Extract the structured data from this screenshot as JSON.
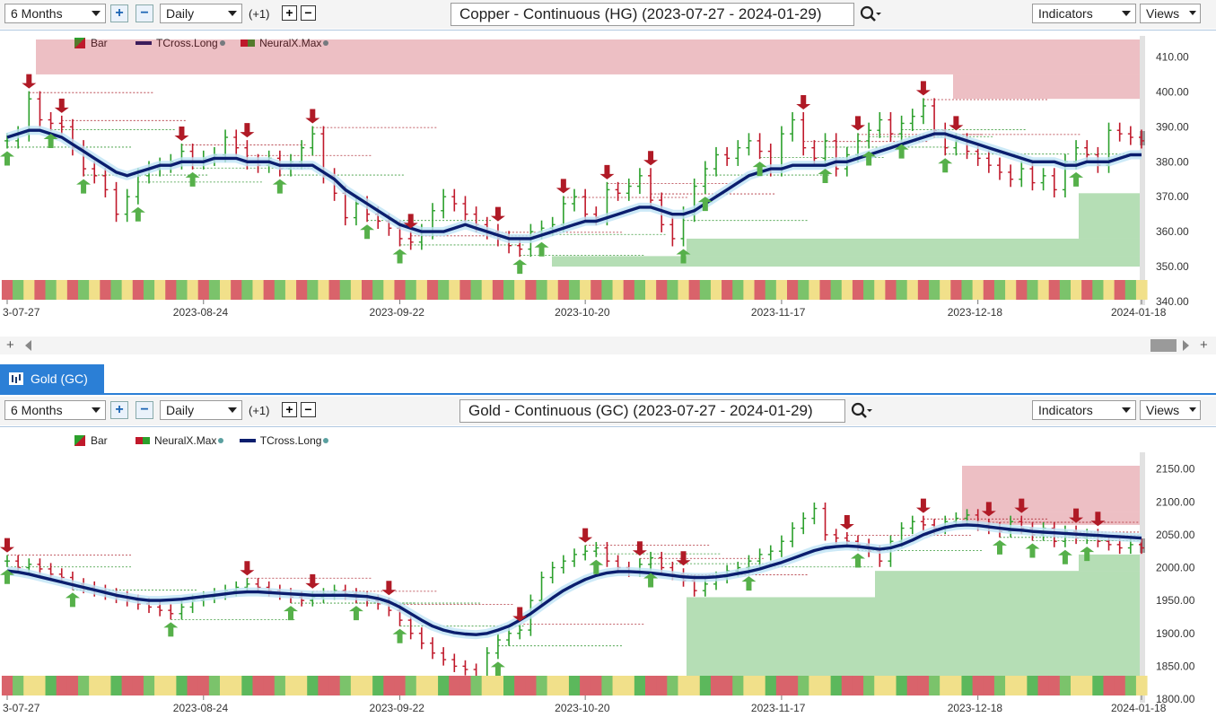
{
  "copper": {
    "toolbar": {
      "period": "6 Months",
      "interval": "Daily",
      "offset": "(+1)",
      "title": "Copper - Continuous (HG) (2023-07-27 - 2024-01-29)",
      "indicators": "Indicators",
      "views": "Views"
    },
    "legend": {
      "bar": "Bar",
      "tcross": "TCross.Long",
      "neuralx": "NeuralX.Max"
    },
    "chart_data": {
      "type": "bar",
      "ylim": [
        340,
        415
      ],
      "yticks": [
        "410.00",
        "400.00",
        "390.00",
        "380.00",
        "370.00",
        "360.00",
        "350.00",
        "340.00"
      ],
      "xticks": [
        "3-07-27",
        "2023-08-24",
        "2023-09-22",
        "2023-10-20",
        "2023-11-17",
        "2023-12-18",
        "2024-01-18"
      ],
      "close": [
        386,
        388,
        398,
        392,
        391,
        390,
        384,
        378,
        376,
        372,
        365,
        370,
        376,
        378,
        379,
        380,
        383,
        380,
        381,
        382,
        387,
        384,
        380,
        379,
        381,
        378,
        380,
        384,
        388,
        376,
        371,
        364,
        368,
        365,
        363,
        361,
        358,
        357,
        360,
        366,
        370,
        368,
        365,
        362,
        360,
        358,
        356,
        355,
        360,
        361,
        362,
        368,
        370,
        365,
        364,
        372,
        371,
        373,
        376,
        369,
        362,
        358,
        365,
        373,
        378,
        382,
        381,
        384,
        386,
        383,
        378,
        388,
        392,
        384,
        381,
        386,
        378,
        382,
        386,
        389,
        392,
        388,
        391,
        393,
        396,
        389,
        384,
        386,
        383,
        381,
        379,
        377,
        375,
        378,
        374,
        376,
        372,
        380,
        384,
        382,
        379,
        389,
        388,
        387,
        386
      ],
      "tcross": [
        387,
        388,
        389,
        389,
        388,
        387,
        385,
        383,
        381,
        379,
        377,
        376,
        377,
        378,
        379,
        379,
        380,
        380,
        380,
        381,
        381,
        381,
        380,
        380,
        380,
        379,
        379,
        379,
        379,
        377,
        375,
        372,
        370,
        368,
        366,
        364,
        362,
        361,
        360,
        360,
        360,
        361,
        362,
        361,
        360,
        359,
        358,
        358,
        358,
        359,
        360,
        361,
        362,
        363,
        363,
        364,
        365,
        366,
        367,
        367,
        366,
        365,
        365,
        366,
        368,
        370,
        372,
        374,
        376,
        377,
        378,
        378,
        379,
        379,
        379,
        379,
        380,
        380,
        381,
        382,
        383,
        384,
        385,
        386,
        387,
        388,
        388,
        387,
        386,
        385,
        384,
        383,
        382,
        381,
        380,
        380,
        380,
        379,
        379,
        380,
        380,
        380,
        381,
        382,
        382
      ],
      "sell_arrows": [
        2,
        5,
        16,
        22,
        28,
        37,
        45,
        51,
        55,
        59,
        73,
        78,
        84,
        87
      ],
      "buy_arrows": [
        0,
        4,
        7,
        12,
        17,
        25,
        33,
        36,
        47,
        49,
        62,
        64,
        69,
        75,
        79,
        82,
        86,
        98
      ],
      "regime_colors": [
        "#d9636b",
        "#7bc36b",
        "#f1e08a",
        "#5cb85c",
        "#9a8f4e"
      ],
      "zones": [
        {
          "from": 405,
          "to": 415,
          "color": "#c0192b"
        },
        {
          "from": 398,
          "to": 405,
          "color": "#c0192b"
        },
        {
          "from": 350,
          "to": 353,
          "color": "#2ca02c"
        },
        {
          "from": 353,
          "to": 358,
          "color": "#2ca02c"
        },
        {
          "from": 358,
          "to": 371,
          "color": "#2ca02c"
        }
      ]
    }
  },
  "gold": {
    "tab": "Gold (GC)",
    "toolbar": {
      "period": "6 Months",
      "interval": "Daily",
      "offset": "(+1)",
      "title": "Gold - Continuous (GC) (2023-07-27 - 2024-01-29)",
      "indicators": "Indicators",
      "views": "Views"
    },
    "legend": {
      "bar": "Bar",
      "neuralx": "NeuralX.Max",
      "tcross": "TCross.Long"
    },
    "chart_data": {
      "type": "bar",
      "ylim": [
        1800,
        2170
      ],
      "yticks": [
        "2150.00",
        "2100.00",
        "2050.00",
        "2000.00",
        "1950.00",
        "1900.00",
        "1850.00",
        "1800.00"
      ],
      "xticks": [
        "3-07-27",
        "2023-08-24",
        "2023-09-22",
        "2023-10-20",
        "2023-11-17",
        "2023-12-18",
        "2024-01-18"
      ],
      "close": [
        2010,
        2000,
        2005,
        1998,
        1990,
        1985,
        1975,
        1970,
        1965,
        1960,
        1955,
        1950,
        1945,
        1940,
        1935,
        1930,
        1940,
        1950,
        1955,
        1960,
        1965,
        1970,
        1975,
        1970,
        1965,
        1960,
        1955,
        1950,
        1955,
        1960,
        1965,
        1960,
        1955,
        1950,
        1945,
        1935,
        1920,
        1900,
        1885,
        1870,
        1860,
        1850,
        1845,
        1830,
        1870,
        1890,
        1900,
        1905,
        1950,
        1985,
        2000,
        2010,
        2020,
        2025,
        2030,
        2010,
        2000,
        1995,
        2005,
        2015,
        2000,
        1990,
        1980,
        1965,
        1975,
        1985,
        1995,
        2000,
        2010,
        2020,
        2025,
        2040,
        2060,
        2075,
        2090,
        2050,
        2045,
        2040,
        2035,
        2025,
        2010,
        2040,
        2060,
        2070,
        2065,
        2060,
        2070,
        2075,
        2080,
        2065,
        2060,
        2055,
        2070,
        2060,
        2050,
        2060,
        2040,
        2055,
        2045,
        2050,
        2040,
        2035,
        2030,
        2035,
        2030
      ],
      "tcross": [
        1995,
        1993,
        1990,
        1986,
        1982,
        1978,
        1974,
        1970,
        1966,
        1962,
        1958,
        1955,
        1952,
        1950,
        1950,
        1951,
        1952,
        1954,
        1956,
        1958,
        1960,
        1962,
        1963,
        1963,
        1962,
        1961,
        1960,
        1959,
        1958,
        1958,
        1958,
        1958,
        1957,
        1956,
        1953,
        1948,
        1940,
        1930,
        1920,
        1911,
        1905,
        1901,
        1899,
        1898,
        1900,
        1905,
        1911,
        1920,
        1930,
        1942,
        1954,
        1965,
        1974,
        1982,
        1988,
        1992,
        1994,
        1994,
        1993,
        1992,
        1990,
        1988,
        1986,
        1985,
        1985,
        1986,
        1988,
        1991,
        1994,
        1998,
        2003,
        2008,
        2014,
        2020,
        2026,
        2030,
        2032,
        2033,
        2032,
        2030,
        2028,
        2030,
        2035,
        2042,
        2050,
        2056,
        2061,
        2064,
        2065,
        2064,
        2062,
        2060,
        2058,
        2057,
        2055,
        2054,
        2053,
        2052,
        2051,
        2050,
        2049,
        2048,
        2047,
        2046,
        2045
      ],
      "sell_arrows": [
        0,
        22,
        28,
        35,
        47,
        53,
        58,
        62,
        77,
        84,
        90,
        93,
        98,
        100
      ],
      "buy_arrows": [
        0,
        6,
        15,
        26,
        32,
        36,
        45,
        54,
        59,
        68,
        78,
        91,
        94,
        97,
        99
      ],
      "regime_colors": [
        "#d9636b",
        "#7bc36b",
        "#f1e08a",
        "#5cb85c"
      ],
      "zones": [
        {
          "from": 2110,
          "to": 2155,
          "color": "#c0192b"
        },
        {
          "from": 2085,
          "to": 2110,
          "color": "#c0192b"
        },
        {
          "from": 2065,
          "to": 2085,
          "color": "#c0192b"
        },
        {
          "from": 1835,
          "to": 1955,
          "color": "#2ca02c"
        },
        {
          "from": 1955,
          "to": 1995,
          "color": "#2ca02c"
        },
        {
          "from": 1995,
          "to": 2020,
          "color": "#2ca02c"
        }
      ]
    }
  }
}
